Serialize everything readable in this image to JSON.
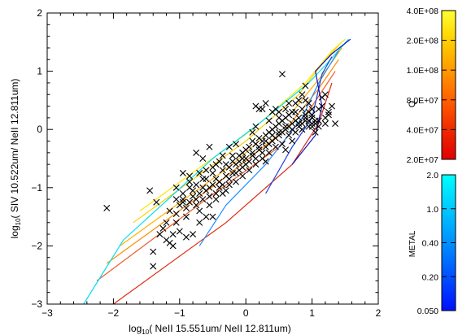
{
  "chart_data": {
    "type": "scatter",
    "xlabel_prefix": "log",
    "xlabel_sub": "10",
    "xlabel_rest": "( NeII 15.551um/ NeII 12.811um)",
    "ylabel_prefix": "log",
    "ylabel_sub": "10",
    "ylabel_rest": "( SIV 10.522um/ NeII 12.811um)",
    "xlim": [
      -3,
      2
    ],
    "ylim": [
      -3,
      2
    ],
    "xticks": [
      -3,
      -2,
      -1,
      0,
      1,
      2
    ],
    "yticks": [
      -3,
      -2,
      -1,
      0,
      1,
      2
    ],
    "xtick_labels": [
      "−3",
      "−2",
      "−1",
      "0",
      "1",
      "2"
    ],
    "ytick_labels": [
      "−3",
      "−2",
      "−1",
      "0",
      "1",
      "2"
    ],
    "points": [
      [
        -2.1,
        -1.35
      ],
      [
        -1.4,
        -2.1
      ],
      [
        -1.4,
        -2.35
      ],
      [
        -1.25,
        -1.7
      ],
      [
        -1.2,
        -1.9
      ],
      [
        -1.15,
        -1.95
      ],
      [
        -1.1,
        -1.8
      ],
      [
        -1.1,
        -2.0
      ],
      [
        -1.05,
        -1.6
      ],
      [
        -1.05,
        -1.45
      ],
      [
        -1.0,
        -1.3
      ],
      [
        -0.95,
        -1.2
      ],
      [
        -0.95,
        -1.1
      ],
      [
        -0.9,
        -1.35
      ],
      [
        -0.9,
        -1.5
      ],
      [
        -0.85,
        -1.25
      ],
      [
        -0.85,
        -0.9
      ],
      [
        -0.8,
        -1.15
      ],
      [
        -0.8,
        -1.05
      ],
      [
        -0.75,
        -1.3
      ],
      [
        -0.75,
        -0.95
      ],
      [
        -0.7,
        -1.1
      ],
      [
        -0.7,
        -1.4
      ],
      [
        -0.65,
        -1.0
      ],
      [
        -0.65,
        -1.2
      ],
      [
        -0.6,
        -0.85
      ],
      [
        -0.6,
        -1.05
      ],
      [
        -0.55,
        -1.15
      ],
      [
        -0.55,
        -1.3
      ],
      [
        -0.5,
        -0.95
      ],
      [
        -0.5,
        -0.75
      ],
      [
        -0.45,
        -1.1
      ],
      [
        -0.45,
        -0.85
      ],
      [
        -0.4,
        -1.0
      ],
      [
        -0.4,
        -0.9
      ],
      [
        -0.35,
        -0.7
      ],
      [
        -0.35,
        -0.95
      ],
      [
        -0.3,
        -0.8
      ],
      [
        -0.3,
        -1.05
      ],
      [
        -0.25,
        -0.65
      ],
      [
        -0.25,
        -0.85
      ],
      [
        -0.2,
        -0.75
      ],
      [
        -0.2,
        -0.55
      ],
      [
        -0.15,
        -0.9
      ],
      [
        -0.15,
        -0.6
      ],
      [
        -0.1,
        -0.7
      ],
      [
        -0.1,
        -0.45
      ],
      [
        -0.05,
        -0.8
      ],
      [
        -0.05,
        -0.5
      ],
      [
        0.0,
        -0.6
      ],
      [
        0.0,
        -0.35
      ],
      [
        0.05,
        -0.55
      ],
      [
        0.05,
        -0.3
      ],
      [
        0.1,
        -0.45
      ],
      [
        0.1,
        -0.2
      ],
      [
        0.15,
        -0.5
      ],
      [
        0.15,
        -0.25
      ],
      [
        0.2,
        -0.35
      ],
      [
        0.2,
        -0.15
      ],
      [
        0.25,
        -0.4
      ],
      [
        0.25,
        -0.2
      ],
      [
        0.3,
        -0.3
      ],
      [
        0.3,
        -0.1
      ],
      [
        0.35,
        -0.25
      ],
      [
        0.35,
        -0.05
      ],
      [
        0.4,
        -0.2
      ],
      [
        0.4,
        0.0
      ],
      [
        0.45,
        -0.15
      ],
      [
        0.45,
        0.05
      ],
      [
        0.5,
        -0.1
      ],
      [
        0.5,
        0.1
      ],
      [
        0.55,
        -0.05
      ],
      [
        0.55,
        0.15
      ],
      [
        0.6,
        0.0
      ],
      [
        0.6,
        0.2
      ],
      [
        0.65,
        0.05
      ],
      [
        0.65,
        0.25
      ],
      [
        0.7,
        0.1
      ],
      [
        0.7,
        -0.2
      ],
      [
        0.75,
        0.15
      ],
      [
        0.75,
        0.3
      ],
      [
        0.8,
        0.05
      ],
      [
        0.8,
        0.2
      ],
      [
        0.85,
        0.1
      ],
      [
        0.85,
        0.35
      ],
      [
        0.9,
        0.15
      ],
      [
        0.9,
        0.25
      ],
      [
        0.95,
        0.05
      ],
      [
        0.95,
        0.3
      ],
      [
        1.0,
        0.1
      ],
      [
        1.0,
        0.2
      ],
      [
        1.05,
        0.15
      ],
      [
        1.05,
        -0.05
      ],
      [
        1.1,
        0.35
      ],
      [
        1.1,
        0.05
      ],
      [
        1.15,
        0.4
      ],
      [
        1.2,
        0.2
      ],
      [
        1.25,
        0.25
      ],
      [
        1.3,
        0.4
      ],
      [
        1.35,
        0.1
      ],
      [
        1.05,
        0.1
      ],
      [
        1.0,
        0.05
      ],
      [
        0.95,
        0.45
      ],
      [
        0.9,
        0.75
      ],
      [
        0.55,
        0.95
      ],
      [
        0.45,
        0.35
      ],
      [
        0.5,
        0.3
      ],
      [
        0.3,
        0.45
      ],
      [
        0.2,
        0.35
      ],
      [
        0.25,
        0.35
      ],
      [
        -0.65,
        -0.5
      ],
      [
        -0.75,
        -0.4
      ],
      [
        -0.55,
        -0.3
      ],
      [
        -0.6,
        -1.5
      ],
      [
        -0.7,
        -1.6
      ],
      [
        -0.5,
        -1.5
      ],
      [
        -0.8,
        -1.8
      ],
      [
        -0.9,
        -1.85
      ],
      [
        -1.0,
        -1.75
      ],
      [
        -1.15,
        -1.4
      ],
      [
        -1.2,
        -1.6
      ],
      [
        -1.3,
        -1.8
      ],
      [
        -1.45,
        -1.05
      ],
      [
        -1.35,
        -1.25
      ],
      [
        -1.05,
        -1.0
      ],
      [
        -0.95,
        -0.75
      ],
      [
        -0.85,
        -0.8
      ],
      [
        -0.45,
        -0.6
      ],
      [
        -0.35,
        -0.45
      ],
      [
        -0.25,
        -0.3
      ],
      [
        -0.15,
        -0.25
      ],
      [
        -0.05,
        -0.4
      ],
      [
        0.1,
        -0.05
      ],
      [
        0.15,
        0.05
      ],
      [
        0.35,
        0.15
      ],
      [
        0.4,
        0.3
      ],
      [
        0.5,
        0.2
      ],
      [
        0.6,
        0.35
      ],
      [
        0.65,
        0.45
      ],
      [
        0.7,
        0.3
      ],
      [
        0.75,
        0.45
      ],
      [
        0.8,
        0.5
      ],
      [
        0.85,
        0.6
      ],
      [
        0.9,
        0.5
      ],
      [
        1.0,
        0.35
      ],
      [
        0.95,
        0.15
      ],
      [
        0.85,
        0.0
      ],
      [
        0.75,
        -0.05
      ],
      [
        0.65,
        -0.1
      ],
      [
        0.55,
        -0.25
      ],
      [
        0.45,
        -0.3
      ],
      [
        0.35,
        -0.4
      ],
      [
        0.25,
        -0.5
      ],
      [
        0.15,
        -0.6
      ],
      [
        0.05,
        -0.7
      ],
      [
        -0.05,
        -0.65
      ],
      [
        -0.15,
        -0.75
      ],
      [
        -0.25,
        -0.95
      ],
      [
        -0.35,
        -1.1
      ],
      [
        -0.45,
        -1.2
      ],
      [
        -0.55,
        -1.0
      ],
      [
        -0.65,
        -0.85
      ],
      [
        -0.75,
        -1.2
      ],
      [
        -0.85,
        -1.0
      ],
      [
        -0.95,
        -1.25
      ],
      [
        -1.05,
        -1.2
      ],
      [
        -0.7,
        -0.75
      ],
      [
        -0.6,
        -0.7
      ],
      [
        -0.5,
        -0.65
      ],
      [
        -0.4,
        -0.55
      ],
      [
        -0.3,
        -0.6
      ],
      [
        -0.2,
        -0.45
      ],
      [
        -0.1,
        -0.55
      ],
      [
        0.0,
        -0.5
      ],
      [
        0.1,
        -0.4
      ],
      [
        0.2,
        -0.3
      ],
      [
        0.3,
        -0.2
      ],
      [
        0.4,
        -0.1
      ],
      [
        0.5,
        -0.05
      ],
      [
        0.6,
        0.05
      ],
      [
        0.7,
        0.0
      ],
      [
        0.8,
        0.1
      ],
      [
        0.9,
        0.2
      ],
      [
        1.0,
        0.25
      ],
      [
        1.1,
        0.15
      ],
      [
        1.2,
        0.1
      ],
      [
        1.25,
        0.3
      ],
      [
        1.15,
        0.55
      ],
      [
        1.2,
        0.6
      ],
      [
        0.3,
        -0.55
      ],
      [
        0.6,
        -0.35
      ],
      [
        0.15,
        0.4
      ]
    ],
    "models": [
      {
        "color": "#ffd000",
        "points": [
          [
            -1.7,
            -1.6
          ],
          [
            0.0,
            -0.2
          ],
          [
            0.8,
            0.6
          ],
          [
            1.2,
            1.2
          ],
          [
            1.45,
            1.5
          ]
        ]
      },
      {
        "color": "#ffe800",
        "points": [
          [
            -1.6,
            -1.4
          ],
          [
            0.1,
            0.0
          ],
          [
            0.9,
            0.8
          ],
          [
            1.3,
            1.35
          ],
          [
            1.5,
            1.55
          ]
        ]
      },
      {
        "color": "#ffb000",
        "points": [
          [
            -1.9,
            -2.0
          ],
          [
            -0.2,
            -0.6
          ],
          [
            0.7,
            0.3
          ],
          [
            1.2,
            1.0
          ],
          [
            1.45,
            1.4
          ]
        ]
      },
      {
        "color": "#ff8c00",
        "points": [
          [
            -2.1,
            -2.3
          ],
          [
            -0.4,
            -0.9
          ],
          [
            0.6,
            0.0
          ],
          [
            1.1,
            0.7
          ],
          [
            1.4,
            1.2
          ]
        ]
      },
      {
        "color": "#f05a28",
        "points": [
          [
            -2.25,
            -2.6
          ],
          [
            -0.6,
            -1.2
          ],
          [
            0.5,
            -0.3
          ],
          [
            1.0,
            0.4
          ],
          [
            1.35,
            1.0
          ]
        ]
      },
      {
        "color": "#e02a10",
        "points": [
          [
            -2.0,
            -3.0
          ],
          [
            -0.3,
            -1.6
          ],
          [
            0.7,
            -0.6
          ],
          [
            1.1,
            0.1
          ],
          [
            1.3,
            0.8
          ]
        ]
      },
      {
        "color": "#00e0f0",
        "points": [
          [
            -2.45,
            -3.0
          ],
          [
            -1.85,
            -1.9
          ],
          [
            -0.5,
            -0.5
          ],
          [
            0.2,
            0.1
          ],
          [
            0.95,
            0.8
          ],
          [
            1.2,
            1.1
          ],
          [
            1.55,
            1.55
          ]
        ]
      },
      {
        "color": "#2090ff",
        "points": [
          [
            -0.7,
            -2.0
          ],
          [
            -0.3,
            -1.3
          ],
          [
            0.3,
            -0.6
          ],
          [
            0.85,
            0.2
          ],
          [
            1.1,
            0.8
          ],
          [
            1.4,
            1.35
          ]
        ]
      },
      {
        "color": "#1a40e0",
        "points": [
          [
            0.3,
            -1.1
          ],
          [
            0.7,
            -0.3
          ],
          [
            1.0,
            0.2
          ],
          [
            1.15,
            0.95
          ],
          [
            1.3,
            1.25
          ]
        ]
      },
      {
        "color": "#0a10c8",
        "points": [
          [
            0.7,
            -0.6
          ],
          [
            1.05,
            -0.1
          ],
          [
            1.15,
            0.4
          ],
          [
            1.05,
            1.0
          ],
          [
            1.3,
            1.3
          ],
          [
            1.58,
            1.55
          ]
        ]
      }
    ],
    "colorbar_q": {
      "label": "Q",
      "tick_labels": [
        "4.0E+08",
        "2.0E+08",
        "1.0E+08",
        "8.0E+07",
        "4.0E+07",
        "2.0E+07"
      ],
      "colors": [
        "#ffff30",
        "#ffd000",
        "#ff9a00",
        "#ff6000",
        "#ee2a00",
        "#e00000"
      ]
    },
    "colorbar_metal": {
      "label": "METAL",
      "tick_labels": [
        "2.0",
        "1.0",
        "0.40",
        "0.20",
        "0.050"
      ],
      "colors": [
        "#00ffff",
        "#00c8ff",
        "#0090ff",
        "#0050ff",
        "#0010ff"
      ]
    }
  }
}
